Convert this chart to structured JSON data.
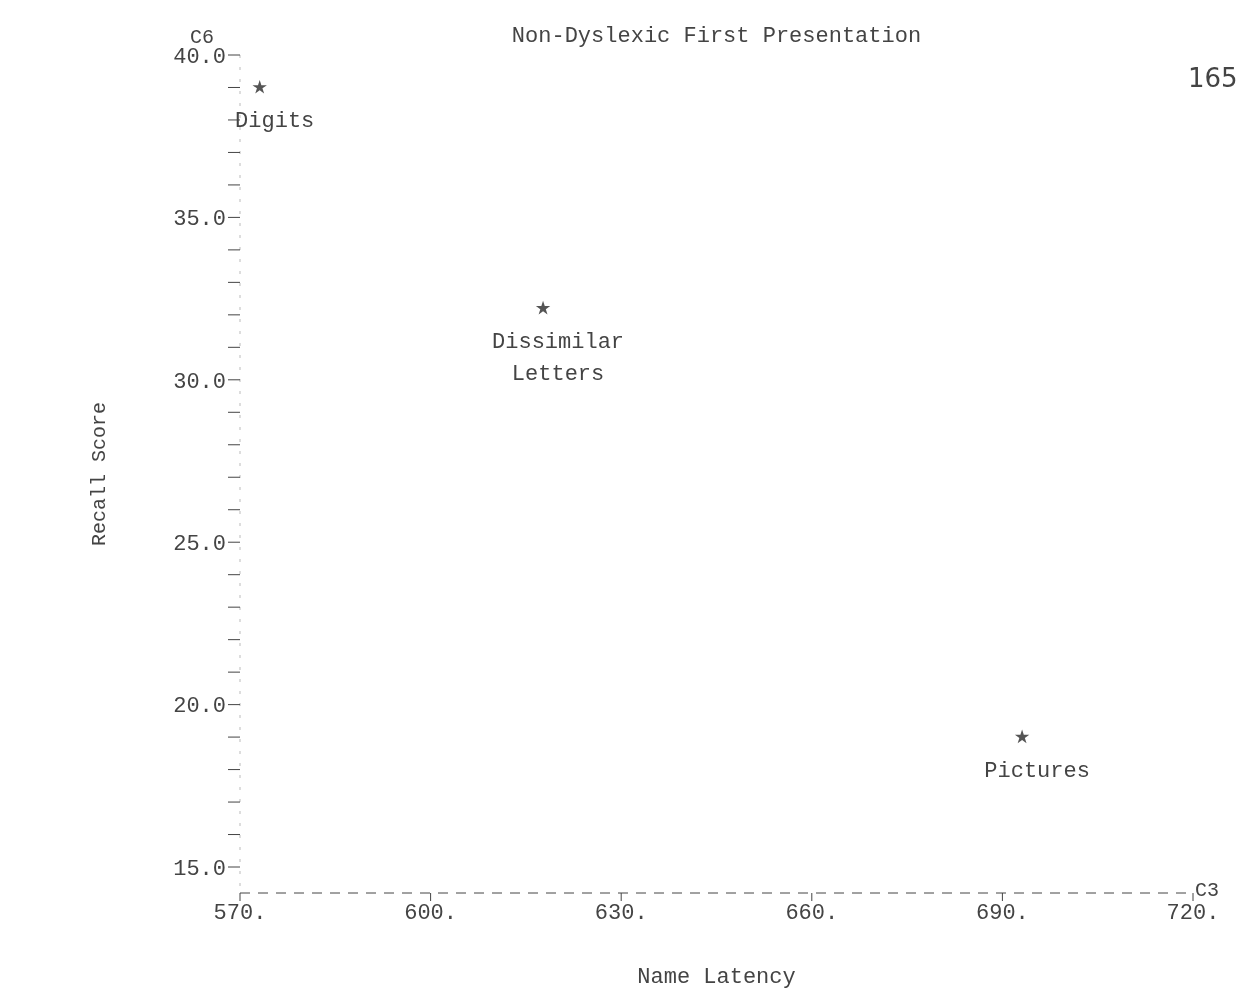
{
  "chart_data": {
    "type": "scatter",
    "title": "Non-Dyslexic First Presentation",
    "xlabel": "Name Latency",
    "ylabel": "Recall Score",
    "x": [
      573.1,
      617.7,
      693.1
    ],
    "values": [
      39.0,
      32.2,
      19.0
    ],
    "color": "#555555",
    "marker": "star",
    "grid": false,
    "legend": false,
    "xlim": [
      570,
      720
    ],
    "xticks": [
      {
        "value": 570,
        "label": "570."
      },
      {
        "value": 600,
        "label": "600."
      },
      {
        "value": 630,
        "label": "630."
      },
      {
        "value": 660,
        "label": "660."
      },
      {
        "value": 690,
        "label": "690."
      },
      {
        "value": 720,
        "label": "720."
      }
    ],
    "ylim": [
      14.2,
      40
    ],
    "yticks": [
      {
        "value": 15,
        "label": "15.0"
      },
      {
        "value": 16,
        "label": null
      },
      {
        "value": 17,
        "label": null
      },
      {
        "value": 18,
        "label": null
      },
      {
        "value": 19,
        "label": null
      },
      {
        "value": 20,
        "label": "20.0"
      },
      {
        "value": 21,
        "label": null
      },
      {
        "value": 22,
        "label": null
      },
      {
        "value": 23,
        "label": null
      },
      {
        "value": 24,
        "label": null
      },
      {
        "value": 25,
        "label": "25.0"
      },
      {
        "value": 26,
        "label": null
      },
      {
        "value": 27,
        "label": null
      },
      {
        "value": 28,
        "label": null
      },
      {
        "value": 29,
        "label": null
      },
      {
        "value": 30,
        "label": "30.0"
      },
      {
        "value": 31,
        "label": null
      },
      {
        "value": 32,
        "label": null
      },
      {
        "value": 33,
        "label": null
      },
      {
        "value": 34,
        "label": null
      },
      {
        "value": 35,
        "label": "35.0"
      },
      {
        "value": 36,
        "label": null
      },
      {
        "value": 37,
        "label": null
      },
      {
        "value": 38,
        "label": null
      },
      {
        "value": 39,
        "label": null
      },
      {
        "value": 40,
        "label": "40.0"
      }
    ],
    "annotations": [
      {
        "text": "Digits",
        "x": 573.1,
        "y": 39.0
      },
      {
        "text": "Dissimilar Letters",
        "x": 617.7,
        "y": 32.2
      },
      {
        "text": "Pictures",
        "x": 693.1,
        "y": 19.0
      },
      "C6",
      "C3",
      "165"
    ]
  }
}
